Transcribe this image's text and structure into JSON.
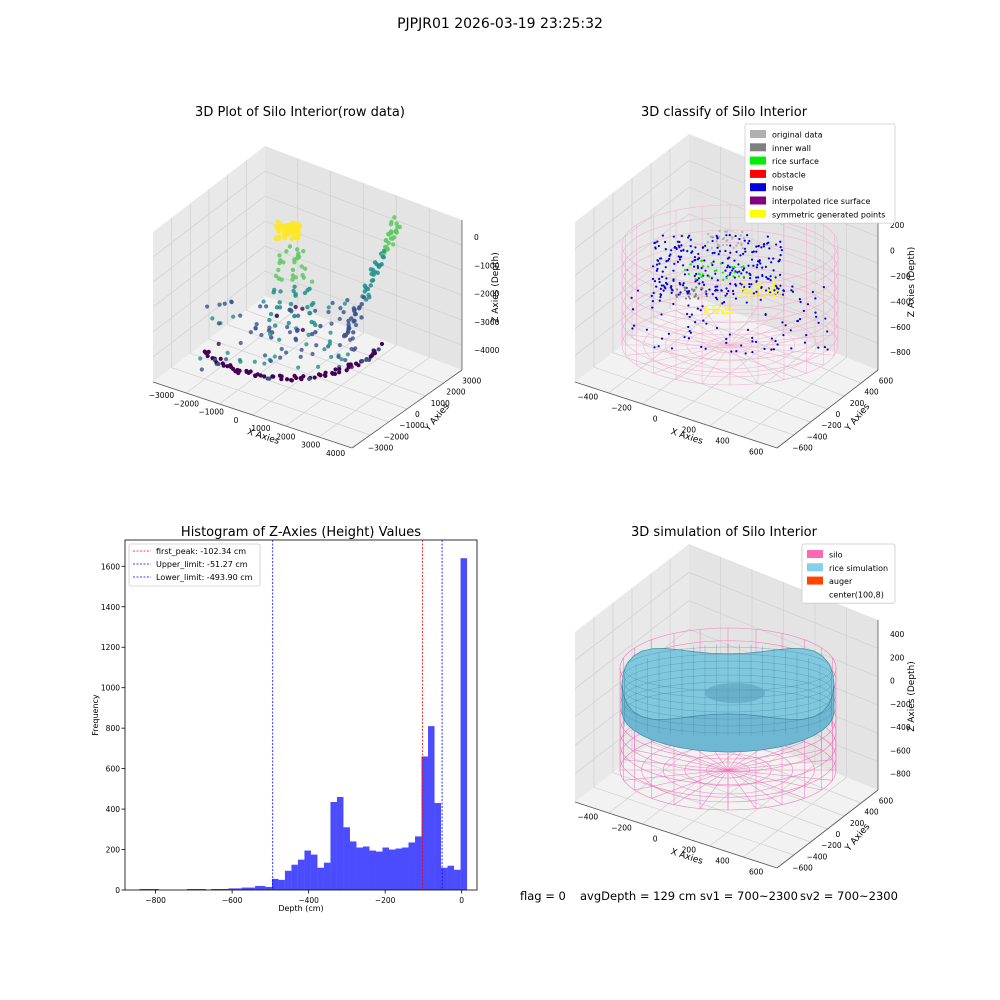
{
  "figure": {
    "title": "PJPJR01 2026-03-19 23:25:32",
    "status": {
      "flag": "flag = 0",
      "avg_depth": "avgDepth = 129 cm",
      "sv1": "sv1 = 700~2300",
      "sv2": "sv2 = 700~2300"
    }
  },
  "chart_data": [
    {
      "type": "scatter",
      "title": "3D Plot of Silo Interior(row data)",
      "xlabel": "X Axies",
      "ylabel": "Y Axies",
      "zlabel": "Z Axies (Depth)",
      "xticks": [
        "−3000",
        "−2000",
        "−1000",
        "0",
        "1000",
        "2000",
        "3000",
        "4000"
      ],
      "yticks": [
        "−3000",
        "−2000",
        "−1000",
        "0",
        "1000",
        "2000",
        "3000"
      ],
      "zticks": [
        "0",
        "−1000",
        "−2000",
        "−3000",
        "−4000"
      ],
      "colormap": [
        "#440154",
        "#3b528b",
        "#21908d",
        "#5dc963",
        "#fde725"
      ],
      "grid": true
    },
    {
      "type": "scatter",
      "title": "3D classify of Silo Interior",
      "xlabel": "X Axies",
      "ylabel": "Y Axies",
      "zlabel": "Z Axies (Depth)",
      "xticks": [
        "−400",
        "−200",
        "0",
        "200",
        "400",
        "600"
      ],
      "yticks": [
        "−600",
        "−400",
        "−200",
        "0",
        "200",
        "400",
        "600"
      ],
      "zticks": [
        "200",
        "0",
        "−200",
        "−400",
        "−600",
        "−800"
      ],
      "legend_position": "top-right",
      "series": [
        {
          "name": "original data",
          "color": "#b0b0b0"
        },
        {
          "name": "inner wall",
          "color": "#808080"
        },
        {
          "name": "rice surface",
          "color": "#00ee00"
        },
        {
          "name": "obstacle",
          "color": "#ff0000"
        },
        {
          "name": "noise",
          "color": "#0000dd"
        },
        {
          "name": "interpolated rice surface",
          "color": "#800080"
        },
        {
          "name": "symmetric generated points",
          "color": "#ffff00"
        }
      ],
      "grid": true
    },
    {
      "type": "bar",
      "title": "Histogram of Z-Axies (Height) Values",
      "xlabel": "Depth (cm)",
      "ylabel": "Frequency",
      "xlim": [
        -880,
        40
      ],
      "ylim": [
        0,
        1730
      ],
      "xticks": [
        "−800",
        "−600",
        "−400",
        "−200",
        "0"
      ],
      "yticks": [
        "0",
        "200",
        "400",
        "600",
        "800",
        "1000",
        "1200",
        "1400",
        "1600"
      ],
      "bar_color": "#0000ff",
      "bins": [
        {
          "x0": -842,
          "x1": -792,
          "value": 5
        },
        {
          "x0": -718,
          "x1": -668,
          "value": 5
        },
        {
          "x0": -655,
          "x1": -610,
          "value": 5
        },
        {
          "x0": -610,
          "x1": -575,
          "value": 8
        },
        {
          "x0": -575,
          "x1": -540,
          "value": 12
        },
        {
          "x0": -540,
          "x1": -513,
          "value": 20
        },
        {
          "x0": -513,
          "x1": -496,
          "value": 15
        },
        {
          "x0": -496,
          "x1": -479,
          "value": 55
        },
        {
          "x0": -479,
          "x1": -462,
          "value": 50
        },
        {
          "x0": -462,
          "x1": -445,
          "value": 95
        },
        {
          "x0": -445,
          "x1": -428,
          "value": 125
        },
        {
          "x0": -428,
          "x1": -411,
          "value": 150
        },
        {
          "x0": -411,
          "x1": -394,
          "value": 195
        },
        {
          "x0": -394,
          "x1": -377,
          "value": 175
        },
        {
          "x0": -377,
          "x1": -360,
          "value": 110
        },
        {
          "x0": -360,
          "x1": -343,
          "value": 135
        },
        {
          "x0": -343,
          "x1": -326,
          "value": 435
        },
        {
          "x0": -326,
          "x1": -309,
          "value": 460
        },
        {
          "x0": -309,
          "x1": -292,
          "value": 310
        },
        {
          "x0": -292,
          "x1": -275,
          "value": 240
        },
        {
          "x0": -275,
          "x1": -258,
          "value": 210
        },
        {
          "x0": -258,
          "x1": -241,
          "value": 215
        },
        {
          "x0": -241,
          "x1": -224,
          "value": 195
        },
        {
          "x0": -224,
          "x1": -207,
          "value": 190
        },
        {
          "x0": -207,
          "x1": -190,
          "value": 210
        },
        {
          "x0": -190,
          "x1": -173,
          "value": 200
        },
        {
          "x0": -173,
          "x1": -156,
          "value": 205
        },
        {
          "x0": -156,
          "x1": -139,
          "value": 210
        },
        {
          "x0": -139,
          "x1": -122,
          "value": 235
        },
        {
          "x0": -122,
          "x1": -105,
          "value": 265
        },
        {
          "x0": -105,
          "x1": -88,
          "value": 660
        },
        {
          "x0": -88,
          "x1": -71,
          "value": 810
        },
        {
          "x0": -71,
          "x1": -54,
          "value": 430
        },
        {
          "x0": -54,
          "x1": -37,
          "value": 110
        },
        {
          "x0": -37,
          "x1": -20,
          "value": 120
        },
        {
          "x0": -20,
          "x1": -3,
          "value": 100
        },
        {
          "x0": -3,
          "x1": 14,
          "value": 1640
        }
      ],
      "vlines": [
        {
          "label": "first_peak: -102.34 cm",
          "x": -102.34,
          "color": "#ff0000"
        },
        {
          "label": "Upper_limit: -51.27 cm",
          "x": -51.27,
          "color": "#0000ff"
        },
        {
          "label": "Lower_limit: -493.90 cm",
          "x": -493.9,
          "color": "#0000ff"
        }
      ],
      "legend_position": "top-left",
      "grid": false
    },
    {
      "type": "surface",
      "title": "3D simulation of Silo Interior",
      "xlabel": "X Axies",
      "ylabel": "Y Axies",
      "zlabel": "Z Axies (Depth)",
      "xticks": [
        "−400",
        "−200",
        "0",
        "200",
        "400",
        "600"
      ],
      "yticks": [
        "−600",
        "−400",
        "−200",
        "0",
        "200",
        "400",
        "600"
      ],
      "zticks": [
        "400",
        "200",
        "0",
        "−200",
        "−400",
        "−600",
        "−800"
      ],
      "legend_position": "top-right",
      "series": [
        {
          "name": "silo",
          "color": "#ff69b4"
        },
        {
          "name": "rice simulation",
          "color": "#87ceeb"
        },
        {
          "name": "auger",
          "color": "#ff4500"
        },
        {
          "name": "center(100,8)",
          "color": "#ffffff"
        }
      ],
      "grid": true
    }
  ]
}
